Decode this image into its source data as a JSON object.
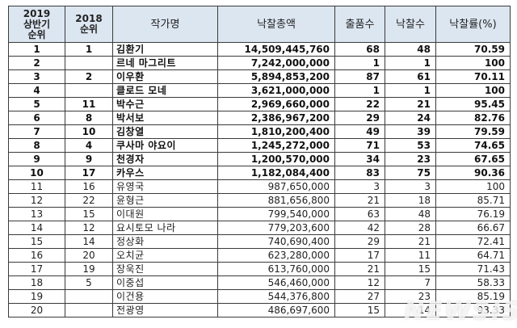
{
  "table": {
    "headers": {
      "rank2019": "2019\n상반기\n순위",
      "rank2019_lines": [
        "2019",
        "상반기",
        "순위"
      ],
      "rank2018_lines": [
        "2018",
        "순위"
      ],
      "artist": "작가명",
      "total": "낙찰총액",
      "lots_offered": "출품수",
      "lots_sold": "낙찰수",
      "sell_rate": "낙찰률(%)"
    },
    "rows": [
      {
        "rank2019": "1",
        "rank2018": "1",
        "artist": "김환기",
        "total": "14,509,445,760",
        "offered": "68",
        "sold": "48",
        "rate": "70.59"
      },
      {
        "rank2019": "2",
        "rank2018": "",
        "artist": "르네 마그리트",
        "total": "7,242,000,000",
        "offered": "1",
        "sold": "1",
        "rate": "100"
      },
      {
        "rank2019": "3",
        "rank2018": "2",
        "artist": "이우환",
        "total": "5,894,853,200",
        "offered": "87",
        "sold": "61",
        "rate": "70.11"
      },
      {
        "rank2019": "4",
        "rank2018": "",
        "artist": "클로드 모네",
        "total": "3,621,000,000",
        "offered": "1",
        "sold": "1",
        "rate": "100"
      },
      {
        "rank2019": "5",
        "rank2018": "11",
        "artist": "박수근",
        "total": "2,969,660,000",
        "offered": "22",
        "sold": "21",
        "rate": "95.45"
      },
      {
        "rank2019": "6",
        "rank2018": "8",
        "artist": "박서보",
        "total": "2,386,967,200",
        "offered": "29",
        "sold": "24",
        "rate": "82.76"
      },
      {
        "rank2019": "7",
        "rank2018": "10",
        "artist": "김창열",
        "total": "1,810,200,400",
        "offered": "49",
        "sold": "39",
        "rate": "79.59"
      },
      {
        "rank2019": "8",
        "rank2018": "4",
        "artist": "쿠사마 야요이",
        "total": "1,245,272,000",
        "offered": "71",
        "sold": "53",
        "rate": "74.65"
      },
      {
        "rank2019": "9",
        "rank2018": "9",
        "artist": "천경자",
        "total": "1,200,570,000",
        "offered": "34",
        "sold": "23",
        "rate": "67.65"
      },
      {
        "rank2019": "10",
        "rank2018": "17",
        "artist": "카우스",
        "total": "1,182,084,400",
        "offered": "83",
        "sold": "75",
        "rate": "90.36"
      },
      {
        "rank2019": "11",
        "rank2018": "16",
        "artist": "유영국",
        "total": "987,650,000",
        "offered": "3",
        "sold": "3",
        "rate": "100"
      },
      {
        "rank2019": "12",
        "rank2018": "22",
        "artist": "윤형근",
        "total": "881,656,800",
        "offered": "21",
        "sold": "18",
        "rate": "85.71"
      },
      {
        "rank2019": "13",
        "rank2018": "15",
        "artist": "이대원",
        "total": "799,540,000",
        "offered": "63",
        "sold": "48",
        "rate": "76.19"
      },
      {
        "rank2019": "14",
        "rank2018": "12",
        "artist": "요시토모 나라",
        "total": "779,203,600",
        "offered": "42",
        "sold": "28",
        "rate": "66.67"
      },
      {
        "rank2019": "15",
        "rank2018": "14",
        "artist": "정상화",
        "total": "740,690,400",
        "offered": "29",
        "sold": "21",
        "rate": "72.41"
      },
      {
        "rank2019": "16",
        "rank2018": "20",
        "artist": "오치균",
        "total": "623,280,000",
        "offered": "17",
        "sold": "11",
        "rate": "64.71"
      },
      {
        "rank2019": "17",
        "rank2018": "19",
        "artist": "장욱진",
        "total": "613,760,000",
        "offered": "21",
        "sold": "15",
        "rate": "71.43"
      },
      {
        "rank2019": "18",
        "rank2018": "5",
        "artist": "이중섭",
        "total": "546,460,000",
        "offered": "12",
        "sold": "7",
        "rate": "58.33"
      },
      {
        "rank2019": "19",
        "rank2018": "",
        "artist": "이건용",
        "total": "544,376,800",
        "offered": "27",
        "sold": "23",
        "rate": "85.19"
      },
      {
        "rank2019": "20",
        "rank2018": "",
        "artist": "전광영",
        "total": "486,697,600",
        "offered": "15",
        "sold": "14",
        "rate": "93.33"
      }
    ],
    "bold_row_count": 10,
    "header_bg": "#dce6f1"
  },
  "watermark": "NEWSIS"
}
